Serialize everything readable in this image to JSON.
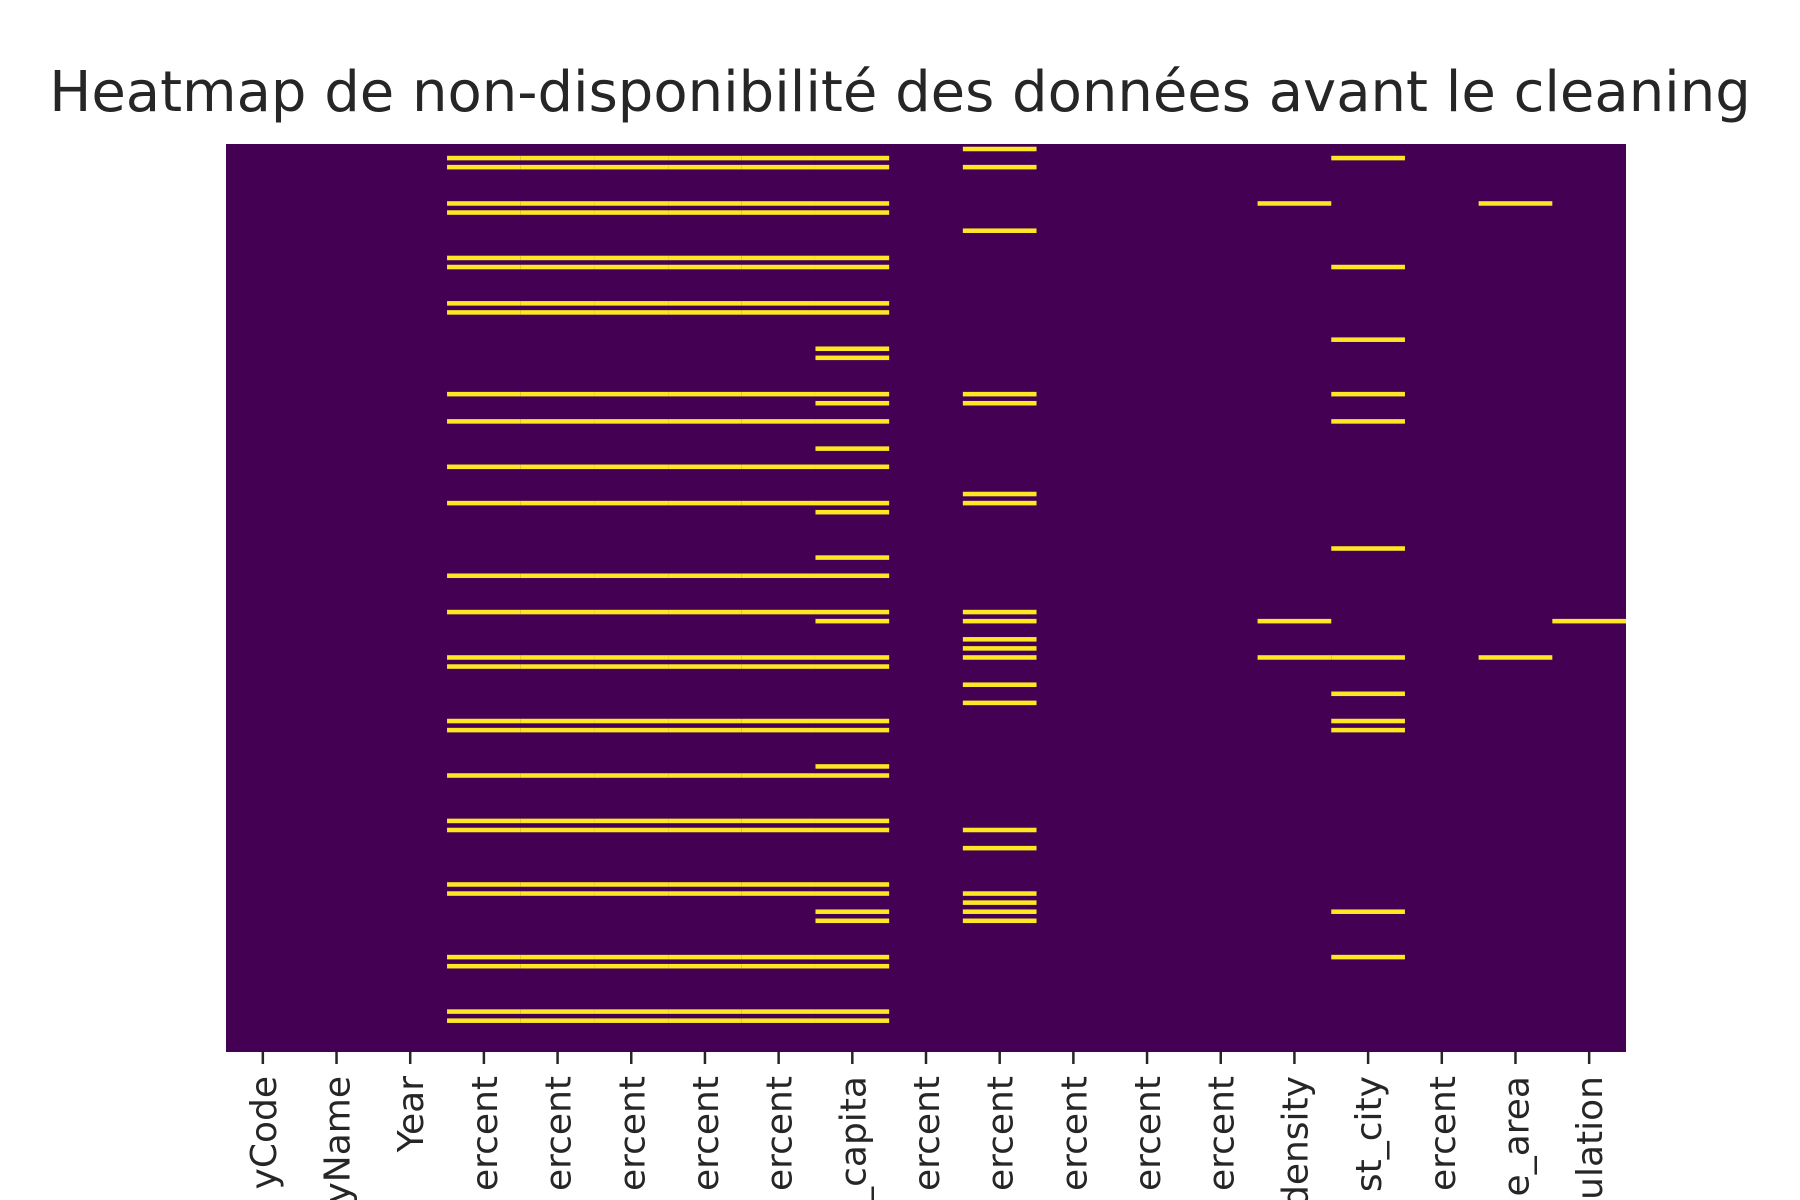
{
  "chart_data": {
    "type": "heatmap",
    "title": "Heatmap de non-disponibilité des données avant le cleaning",
    "xlabel": "",
    "ylabel": "",
    "x_tick_labels": [
      "yCode",
      "yName",
      "Year",
      "ercent",
      "ercent",
      "ercent",
      "ercent",
      "ercent",
      "_capita",
      "ercent",
      "ercent",
      "ercent",
      "ercent",
      "ercent",
      "density",
      "st_city",
      "ercent",
      "e_area",
      "ulation"
    ],
    "y_tick_labels": [],
    "value_scale": [
      0,
      1
    ],
    "colors": {
      "available": "#440154",
      "missing": "#fde725"
    },
    "legend": "none",
    "grid": false,
    "n_rows": 100,
    "missing": [
      {
        "column": 3,
        "rows": [
          1,
          2,
          6,
          7,
          12,
          13,
          17,
          18,
          27,
          30,
          35,
          39,
          47,
          51,
          56,
          57,
          63,
          64,
          69,
          74,
          75,
          81,
          82,
          89,
          90,
          95,
          96
        ]
      },
      {
        "column": 4,
        "rows": [
          1,
          2,
          6,
          7,
          12,
          13,
          17,
          18,
          27,
          30,
          35,
          39,
          47,
          51,
          56,
          57,
          63,
          64,
          69,
          74,
          75,
          81,
          82,
          89,
          90,
          95,
          96
        ]
      },
      {
        "column": 5,
        "rows": [
          1,
          2,
          6,
          7,
          12,
          13,
          17,
          18,
          27,
          30,
          35,
          39,
          47,
          51,
          56,
          57,
          63,
          64,
          69,
          74,
          75,
          81,
          82,
          89,
          90,
          95,
          96
        ]
      },
      {
        "column": 6,
        "rows": [
          1,
          2,
          6,
          7,
          12,
          13,
          17,
          18,
          27,
          30,
          35,
          39,
          47,
          51,
          56,
          57,
          63,
          64,
          69,
          74,
          75,
          81,
          82,
          89,
          90,
          95,
          96
        ]
      },
      {
        "column": 7,
        "rows": [
          1,
          2,
          6,
          7,
          12,
          13,
          17,
          18,
          27,
          30,
          35,
          39,
          47,
          51,
          56,
          57,
          63,
          64,
          69,
          74,
          75,
          81,
          82,
          89,
          90,
          95,
          96
        ]
      },
      {
        "column": 8,
        "rows": [
          1,
          2,
          6,
          7,
          12,
          13,
          17,
          18,
          22,
          23,
          27,
          28,
          30,
          33,
          35,
          39,
          40,
          45,
          47,
          51,
          52,
          56,
          57,
          63,
          64,
          68,
          69,
          74,
          75,
          81,
          82,
          84,
          85,
          89,
          90,
          95,
          96
        ]
      },
      {
        "column": 10,
        "rows": [
          0,
          2,
          9,
          27,
          28,
          38,
          39,
          51,
          52,
          54,
          55,
          56,
          59,
          61,
          75,
          77,
          82,
          83,
          84,
          85
        ]
      },
      {
        "column": 14,
        "rows": [
          6,
          52,
          56
        ]
      },
      {
        "column": 15,
        "rows": [
          1,
          13,
          21,
          27,
          30,
          44,
          56,
          60,
          63,
          64,
          84,
          89
        ]
      },
      {
        "column": 17,
        "rows": [
          6,
          56
        ]
      },
      {
        "column": 18,
        "rows": [
          52
        ]
      }
    ]
  }
}
